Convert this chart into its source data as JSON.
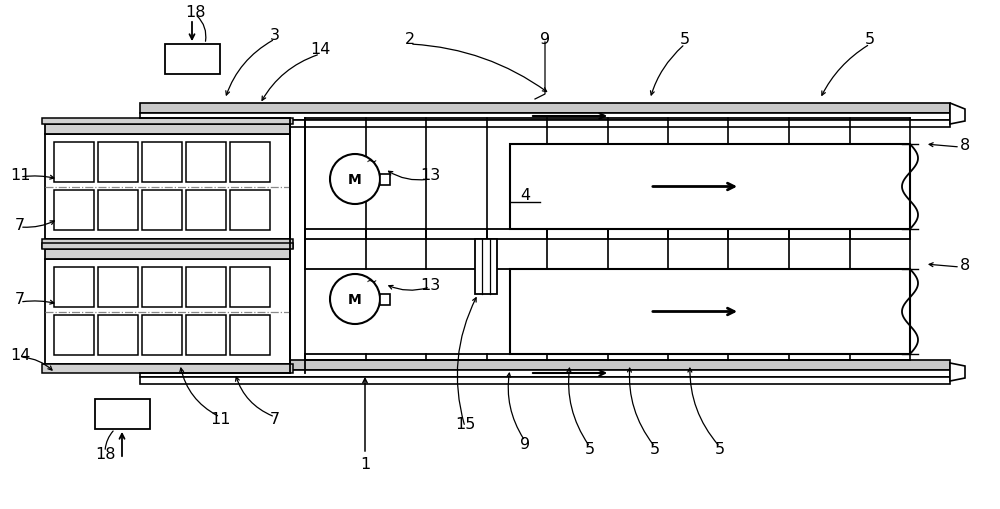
{
  "bg": "#ffffff",
  "fw": 10.0,
  "fh": 5.1,
  "dpi": 100,
  "xlim": [
    0,
    100
  ],
  "ylim": [
    0,
    51
  ]
}
